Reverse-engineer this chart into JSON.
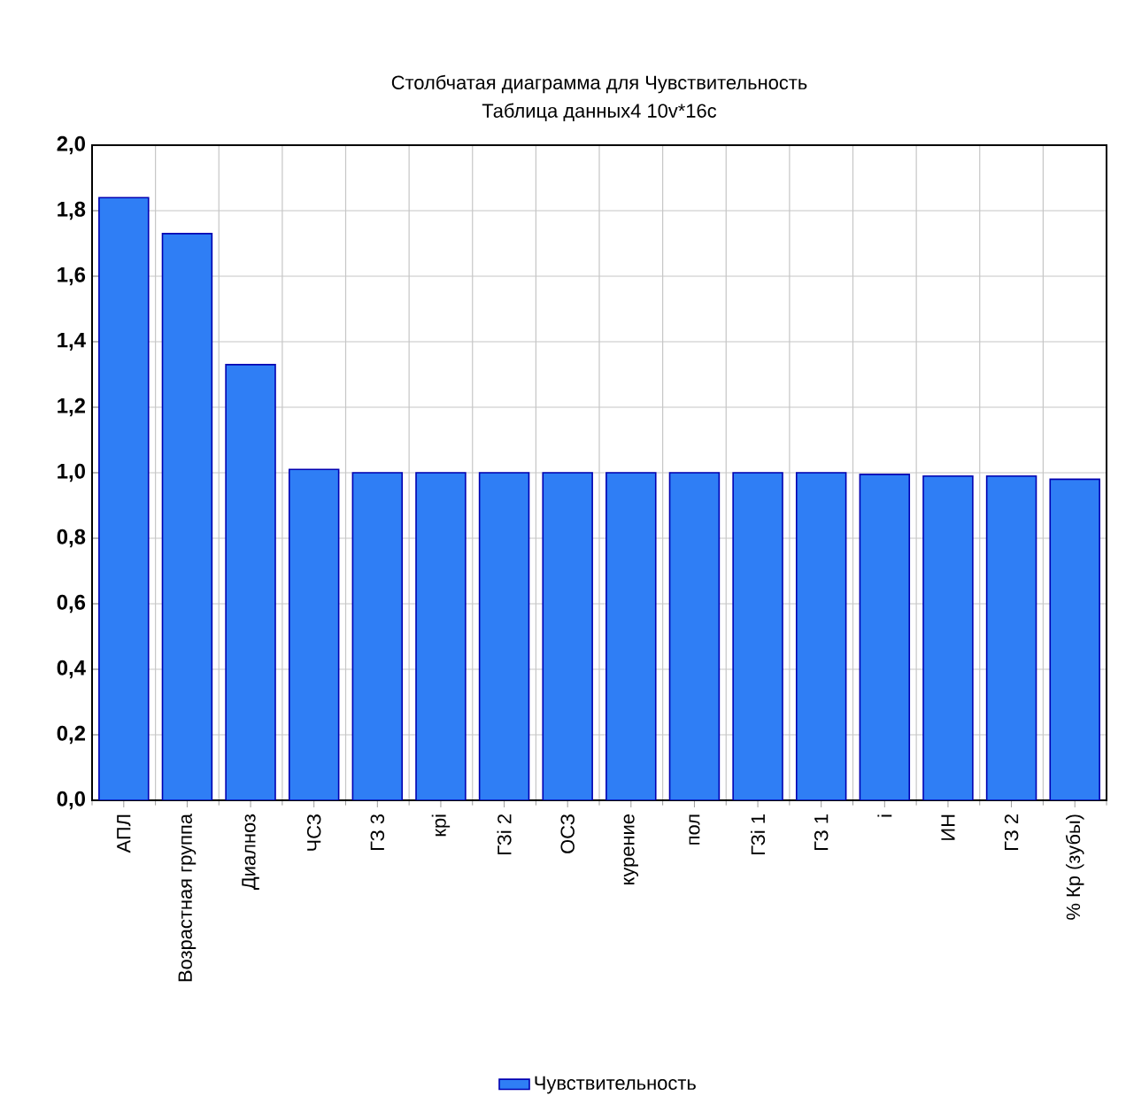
{
  "chart_data": {
    "type": "bar",
    "title": "Столбчатая диаграмма для Чувствительность",
    "subtitle": "Таблица данных4 10v*16c",
    "categories": [
      "АПЛ",
      "Возрастная группа",
      "Диалноз",
      "ЧСЗ",
      "ГЗ 3",
      "кpi",
      "ГЗi 2",
      "ОСЗ",
      "курение",
      "пол",
      "ГЗi 1",
      "ГЗ 1",
      "i",
      "ИН",
      "ГЗ 2",
      "% Кр (зубы)"
    ],
    "series": [
      {
        "name": "Чувствительность",
        "color": "#2f7ef5",
        "values": [
          1.84,
          1.73,
          1.33,
          1.01,
          1.0,
          1.0,
          1.0,
          1.0,
          1.0,
          1.0,
          1.0,
          1.0,
          0.995,
          0.99,
          0.99,
          0.98
        ]
      }
    ],
    "ylim": [
      0,
      2
    ],
    "yticks": [
      {
        "value": 0,
        "label": "0,0"
      },
      {
        "value": 0.2,
        "label": "0,2"
      },
      {
        "value": 0.4,
        "label": "0,4"
      },
      {
        "value": 0.6,
        "label": "0,6"
      },
      {
        "value": 0.8,
        "label": "0,8"
      },
      {
        "value": 1.0,
        "label": "1,0"
      },
      {
        "value": 1.2,
        "label": "1,2"
      },
      {
        "value": 1.4,
        "label": "1,4"
      },
      {
        "value": 1.6,
        "label": "1,6"
      },
      {
        "value": 1.8,
        "label": "1,8"
      },
      {
        "value": 2.0,
        "label": "2,0"
      }
    ],
    "grid": true,
    "legend": "bottom"
  }
}
